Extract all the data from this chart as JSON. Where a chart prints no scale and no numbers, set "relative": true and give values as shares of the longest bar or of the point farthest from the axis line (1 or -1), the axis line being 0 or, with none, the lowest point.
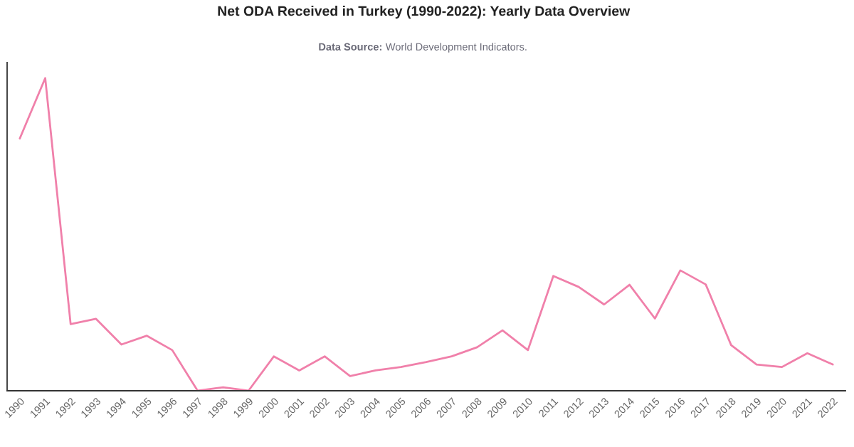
{
  "chart_data": {
    "type": "line",
    "title": "Net ODA Received in Turkey (1990-2022): Yearly Data Overview",
    "subtitle": "Data Source: World Development Indicators.",
    "categories": [
      "1990",
      "1991",
      "1992",
      "1993",
      "1994",
      "1995",
      "1996",
      "1997",
      "1998",
      "1999",
      "2000",
      "2001",
      "2002",
      "2003",
      "2004",
      "2005",
      "2006",
      "2007",
      "2008",
      "2009",
      "2010",
      "2011",
      "2012",
      "2013",
      "2014",
      "2015",
      "2016",
      "2017",
      "2018",
      "2019",
      "2020",
      "2021",
      "2022"
    ],
    "series": [
      {
        "color": "#f080aa",
        "values": [
          0.807,
          1.0,
          0.213,
          0.23,
          0.148,
          0.176,
          0.13,
          0.0,
          0.011,
          0.0,
          0.11,
          0.065,
          0.11,
          0.047,
          0.065,
          0.076,
          0.092,
          0.11,
          0.139,
          0.193,
          0.13,
          0.367,
          0.332,
          0.276,
          0.339,
          0.231,
          0.385,
          0.34,
          0.146,
          0.084,
          0.076,
          0.12,
          0.084
        ]
      }
    ],
    "relative": true,
    "tick_labels": "x"
  }
}
